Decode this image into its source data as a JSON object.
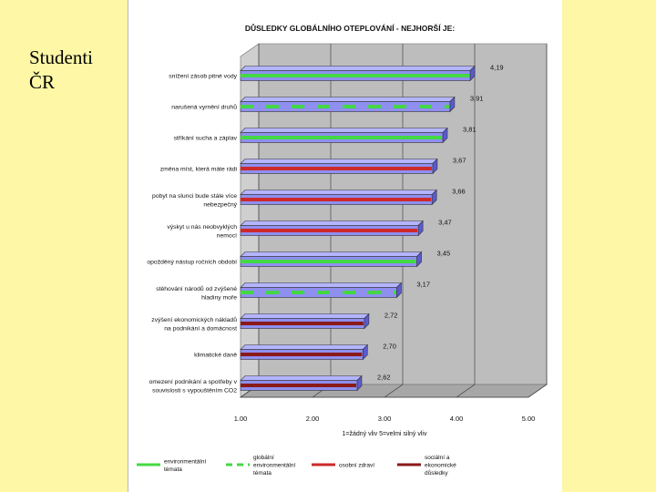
{
  "side_title_lines": [
    "Studenti",
    "ČR"
  ],
  "chart_data": {
    "type": "bar",
    "orientation": "horizontal",
    "title": "DŮSLEDKY GLOBÁLNÍHO OTEPLOVÁNÍ - NEJHORŠÍ JE:",
    "xlabel": "1=žádný vliv 5=velmi silný vliv",
    "xlim": [
      1,
      5
    ],
    "xticks": [
      "1.00",
      "2.00",
      "3.00",
      "4.00",
      "5.00"
    ],
    "bars": [
      {
        "label": [
          "snížení zásob pitné vody"
        ],
        "value": 4.19,
        "value_label": "4,19",
        "category": "env"
      },
      {
        "label": [
          "narušená vyrnění druhů"
        ],
        "value": 3.91,
        "value_label": "3,91",
        "category": "global"
      },
      {
        "label": [
          "stříkání sucha a záplav"
        ],
        "value": 3.81,
        "value_label": "3,81",
        "category": "env"
      },
      {
        "label": [
          "změna míst, která máte rádi"
        ],
        "value": 3.67,
        "value_label": "3,67",
        "category": "health"
      },
      {
        "label": [
          "pobyt na slunci bude stále více",
          "nebezpečný"
        ],
        "value": 3.66,
        "value_label": "3,66",
        "category": "health"
      },
      {
        "label": [
          "výskyt u nás neobvyklých",
          "nemocí"
        ],
        "value": 3.47,
        "value_label": "3,47",
        "category": "health"
      },
      {
        "label": [
          "opožděný nástup ročních období"
        ],
        "value": 3.45,
        "value_label": "3,45",
        "category": "env"
      },
      {
        "label": [
          "stěhování národů od zvýšené",
          "hladiny moře"
        ],
        "value": 3.17,
        "value_label": "3,17",
        "category": "global"
      },
      {
        "label": [
          "zvýšení ekonomických nákladů",
          "na podnikání a domácnost"
        ],
        "value": 2.72,
        "value_label": "2,72",
        "category": "econ"
      },
      {
        "label": [
          "klimatické daně"
        ],
        "value": 2.7,
        "value_label": "2,70",
        "category": "econ"
      },
      {
        "label": [
          "omezení podnikání a spotřeby v",
          "souvislosti s vypouštěním CO2"
        ],
        "value": 2.62,
        "value_label": "2,62",
        "category": "econ"
      }
    ],
    "legend": [
      {
        "key": "env",
        "lines": [
          "environmentální",
          "témata"
        ],
        "color": "#44d844",
        "style": "solid"
      },
      {
        "key": "global",
        "lines": [
          "globální",
          "environmentální",
          "témata"
        ],
        "color": "#44d844",
        "style": "dashed"
      },
      {
        "key": "health",
        "lines": [
          "osobní zdraví"
        ],
        "color": "#cc2a2a",
        "style": "solid"
      },
      {
        "key": "econ",
        "lines": [
          "sociální a",
          "ekonomické",
          "důsledky"
        ],
        "color": "#8a1a1a",
        "style": "solid"
      }
    ],
    "colors": {
      "bar_fill": "#8f8ff0",
      "bar_top": "#b4b4ff",
      "bar_side": "#5a5ad0",
      "plot_back": "#bdbdbd",
      "plot_floor": "#a7a7a7"
    }
  }
}
